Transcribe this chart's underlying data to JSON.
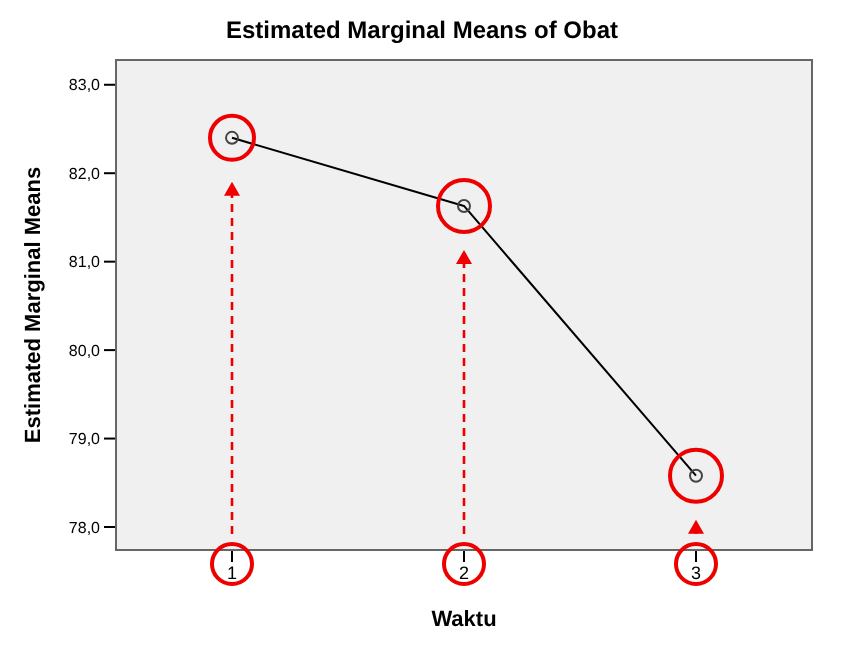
{
  "chart_data": {
    "type": "line",
    "title": "Estimated Marginal Means of Obat",
    "xlabel": "Waktu",
    "ylabel": "Estimated Marginal Means",
    "categories": [
      "1",
      "2",
      "3"
    ],
    "series": [
      {
        "color": "#000000",
        "values": [
          82.4,
          81.63,
          78.58
        ]
      }
    ],
    "ylim": [
      77.74,
      83.28
    ],
    "yticks": [
      {
        "value": 78,
        "label": "78,0"
      },
      {
        "value": 79,
        "label": "79,0"
      },
      {
        "value": 80,
        "label": "80,0"
      },
      {
        "value": 81,
        "label": "81,0"
      },
      {
        "value": 82,
        "label": "82,0"
      },
      {
        "value": 83,
        "label": "83,0"
      }
    ],
    "grid": false,
    "legend": false,
    "marker": "circle",
    "line_style": "solid"
  }
}
